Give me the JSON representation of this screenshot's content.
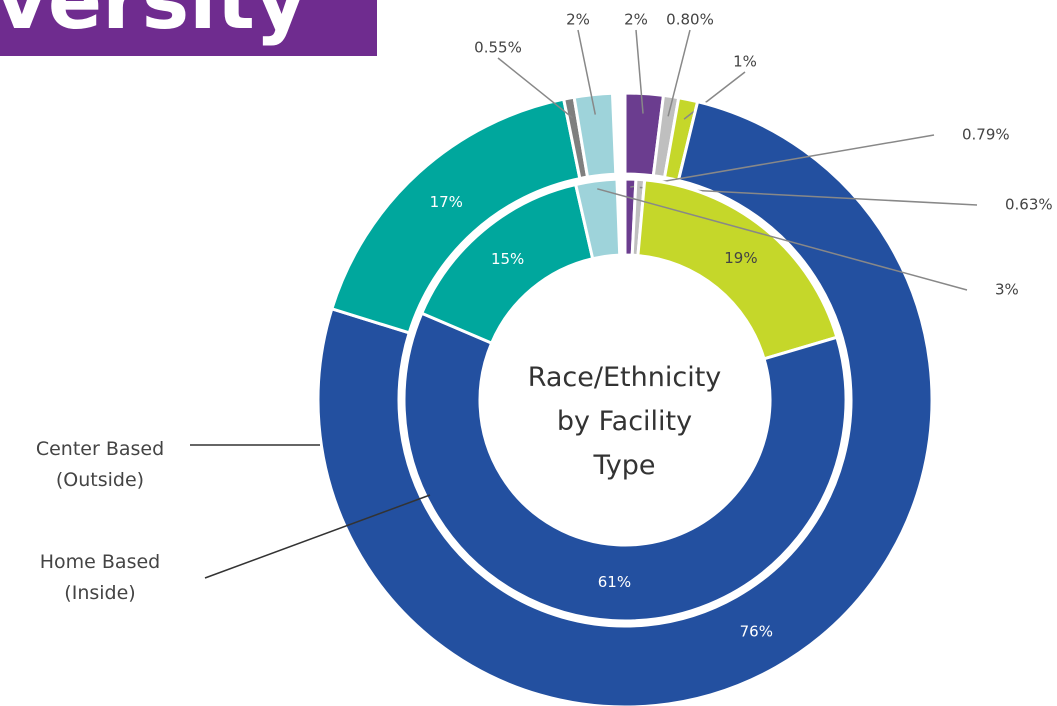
{
  "chart_data": {
    "type": "donut",
    "page_title": "Diversity",
    "title": "Race/Ethnicity by Facility Type",
    "series": [
      {
        "name": "Center Based (Outside)",
        "colors": [
          "#6b3d8f",
          "#bfbfbf",
          "#c5d72a",
          "#2350a0",
          "#00a79d",
          "#7f7f7f",
          "#9ed3da"
        ],
        "values": [
          2,
          0.8,
          1,
          76,
          17,
          0.55,
          2
        ],
        "value_labels": [
          "2%",
          "0.80%",
          "1%",
          "76%",
          "17%",
          "0.55%",
          "2%"
        ]
      },
      {
        "name": "Home Based (Inside)",
        "colors": [
          "#6b3d8f",
          "#bfbfbf",
          "#c5d72a",
          "#2350a0",
          "#00a79d",
          "#9ed3da"
        ],
        "values": [
          0.79,
          0.63,
          19,
          61,
          15,
          3
        ],
        "value_labels": [
          "0.79%",
          "0.63%",
          "19%",
          "61%",
          "15%",
          "3%"
        ]
      }
    ]
  }
}
